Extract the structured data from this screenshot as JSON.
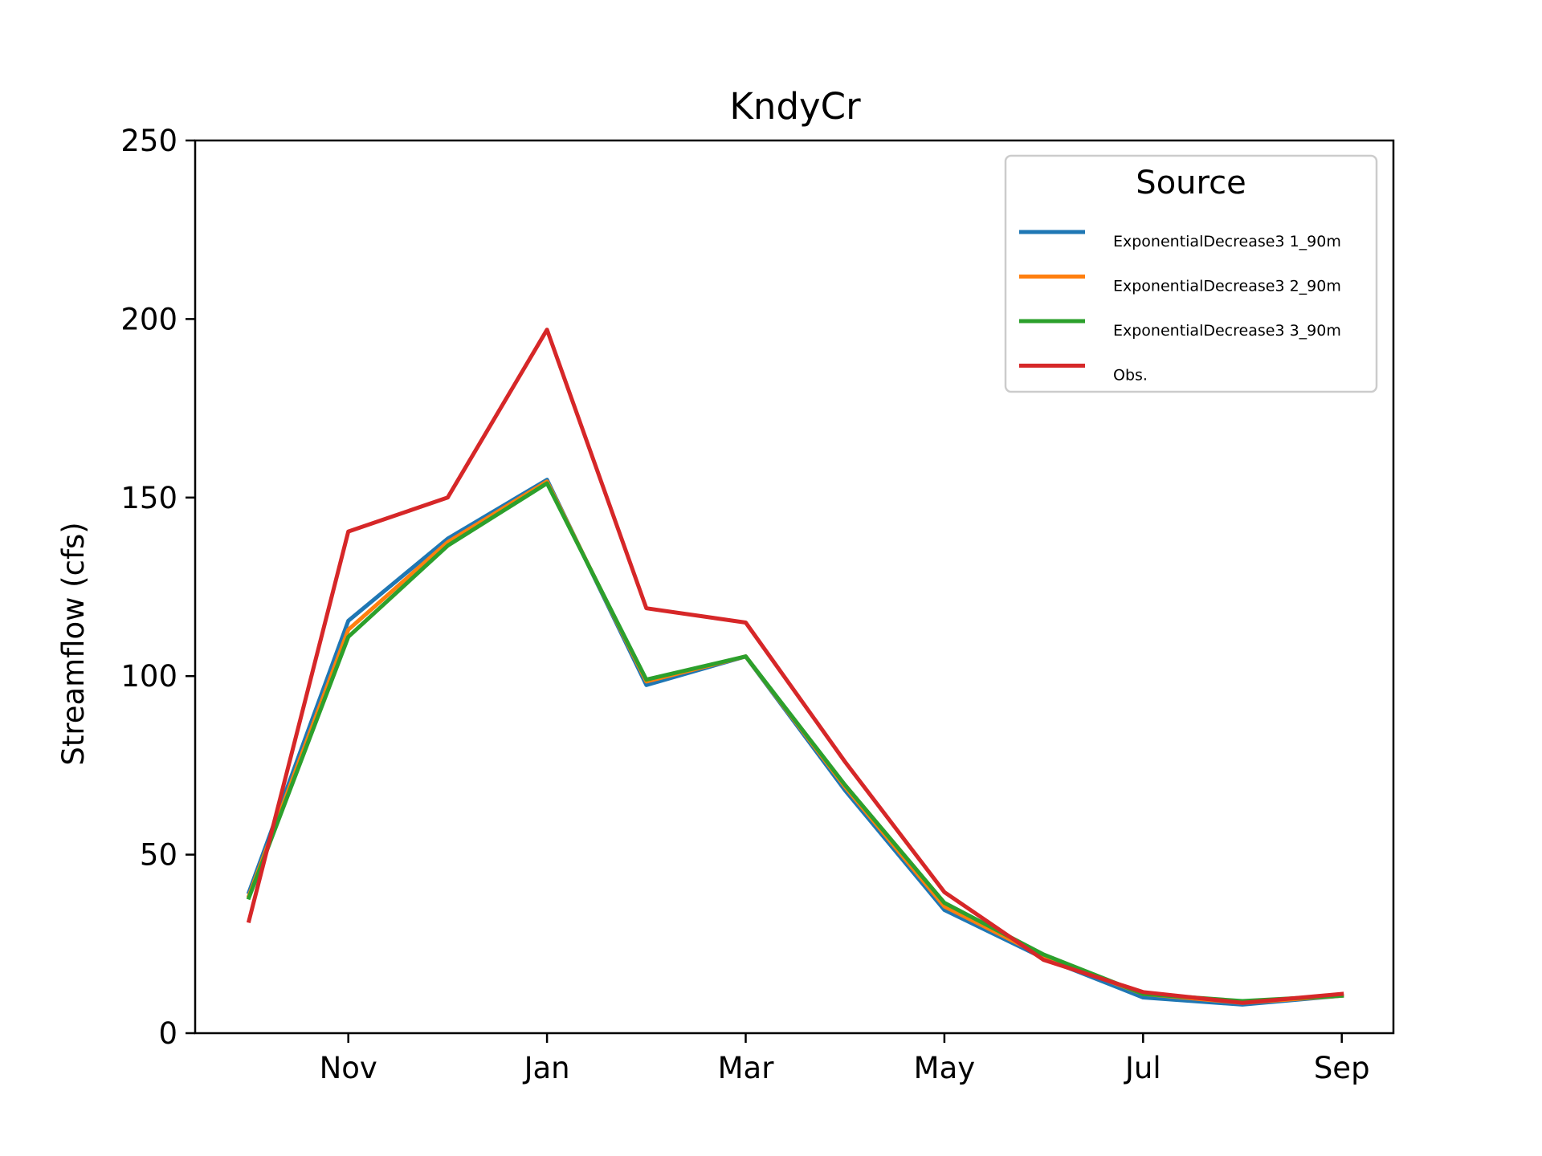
{
  "chart_data": {
    "type": "line",
    "title": "KndyCr",
    "xlabel": "",
    "ylabel": "Streamflow (cfs)",
    "ylim": [
      0,
      250
    ],
    "yticks": [
      0,
      50,
      100,
      150,
      200,
      250
    ],
    "xticks": [
      "Nov",
      "Jan",
      "Mar",
      "May",
      "Jul",
      "Sep"
    ],
    "x": [
      "Oct",
      "Nov",
      "Dec",
      "Jan",
      "Feb",
      "Mar",
      "Apr",
      "May",
      "Jun",
      "Jul",
      "Aug",
      "Sep"
    ],
    "grid": false,
    "legend": {
      "title": "Source",
      "placement": "upper right"
    },
    "series": [
      {
        "name": "ExponentialDecrease3 1_90m",
        "color": "#1f77b4",
        "values": [
          39.5,
          115.5,
          138.5,
          155,
          97.5,
          105.5,
          68,
          34.5,
          21,
          10,
          8,
          10.5
        ]
      },
      {
        "name": "ExponentialDecrease3 2_90m",
        "color": "#ff7f0e",
        "values": [
          38.5,
          113,
          137.5,
          154.5,
          98.5,
          105.5,
          69,
          35.5,
          21.5,
          11,
          8.5,
          10.5
        ]
      },
      {
        "name": "ExponentialDecrease3 3_90m",
        "color": "#2ca02c",
        "values": [
          38,
          111,
          136.5,
          154,
          99,
          105.5,
          69.5,
          36.5,
          22,
          11,
          9,
          10.5
        ]
      },
      {
        "name": "Obs.",
        "color": "#d62728",
        "values": [
          31.5,
          140.5,
          150,
          197,
          119,
          115,
          76,
          39.5,
          20.5,
          11.5,
          8.5,
          11
        ]
      }
    ]
  }
}
